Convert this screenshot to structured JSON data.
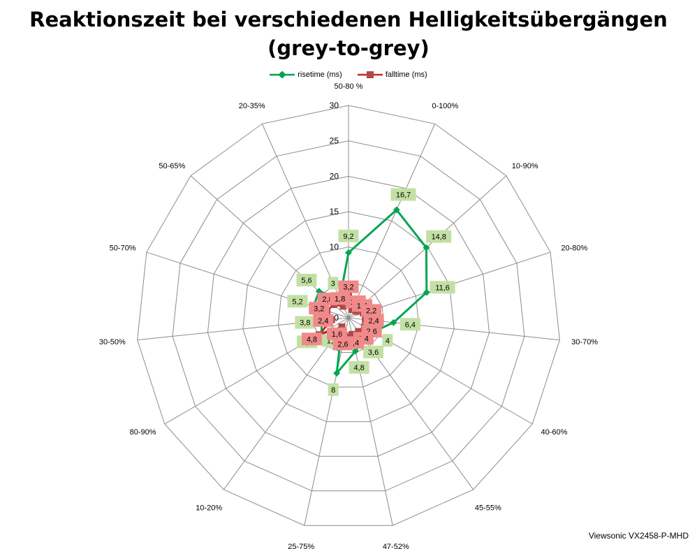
{
  "chart_data": {
    "type": "radar",
    "title": "Reaktionszeit bei verschiedenen Helligkeitsübergängen",
    "subtitle": "(grey-to-grey)",
    "categories": [
      "50-80 %",
      "0-100%",
      "10-90%",
      "20-80%",
      "30-70%",
      "40-60%",
      "45-55%",
      "47-52%",
      "25-75%",
      "10-20%",
      "80-90%",
      "30-50%",
      "50-70%",
      "50-65%",
      "20-35%"
    ],
    "series": [
      {
        "name": "risetime (ms)",
        "color": "#00a651",
        "label_color": "#c3e0a4",
        "marker": "diamond",
        "values": [
          9.2,
          16.7,
          14.8,
          11.6,
          6.4,
          4,
          3.6,
          4.8,
          8,
          1.6,
          4.4,
          3.8,
          5.2,
          5.6,
          3
        ],
        "labels": [
          "9,2",
          "16,7",
          "14,8",
          "11,6",
          "6,4",
          "4",
          "3,6",
          "4,8",
          "8",
          "1,6",
          "4,4",
          "3,8",
          "5,2",
          "5,6",
          "3"
        ]
      },
      {
        "name": "falltime (ms)",
        "color": "#c0282d",
        "label_color": "#f08a8a",
        "marker": "square",
        "values": [
          3.2,
          1.3,
          1.4,
          2.2,
          2.4,
          2.6,
          2.4,
          2.4,
          2.6,
          1.6,
          4.8,
          2.4,
          3.2,
          2.8,
          1.8
        ],
        "labels": [
          "3,2",
          "1,3",
          "1,4",
          "2,2",
          "2,4",
          "2,6",
          "2,4",
          "2,4",
          "2,6",
          "1,6",
          "4,8",
          "2,4",
          "3,2",
          "2,8",
          "1,8"
        ]
      }
    ],
    "radial_range": [
      0,
      30
    ],
    "radial_ticks": [
      0,
      5,
      10,
      15,
      20,
      25,
      30
    ],
    "legend_position": "top",
    "grid": true
  },
  "source_label": "Viewsonic VX2458-P-MHD"
}
